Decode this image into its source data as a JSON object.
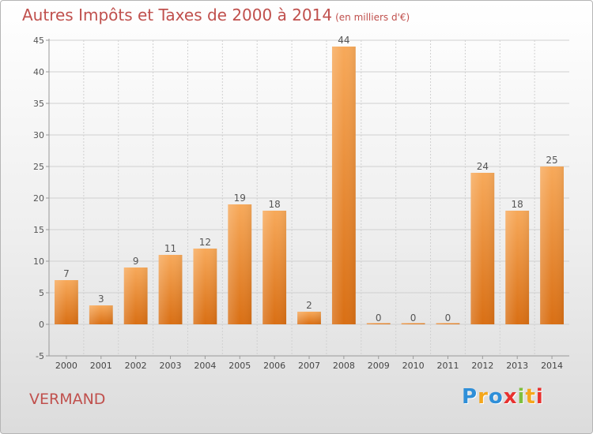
{
  "chart_data": {
    "type": "bar",
    "title": "Autres Impôts et Taxes de 2000 à 2014",
    "subtitle": "(en milliers d'€)",
    "categories": [
      "2000",
      "2001",
      "2002",
      "2003",
      "2004",
      "2005",
      "2006",
      "2007",
      "2008",
      "2009",
      "2010",
      "2011",
      "2012",
      "2013",
      "2014"
    ],
    "values": [
      7,
      3,
      9,
      11,
      12,
      19,
      18,
      2,
      44,
      0,
      0,
      0,
      24,
      18,
      25
    ],
    "ylim": [
      -5,
      45
    ],
    "yticks": [
      -5,
      0,
      5,
      10,
      15,
      20,
      25,
      30,
      35,
      40,
      45
    ],
    "grid": true,
    "bar_color": "#f0923b"
  },
  "footer": {
    "commune": "VERMAND",
    "logo": [
      "P",
      "r",
      "o",
      "x",
      "i",
      "t",
      "i"
    ],
    "logo_colors": [
      "#2f8fd8",
      "#f4a71c",
      "#2f8fd8",
      "#e8312f",
      "#7fbf3f",
      "#f4a71c",
      "#e8312f"
    ]
  }
}
